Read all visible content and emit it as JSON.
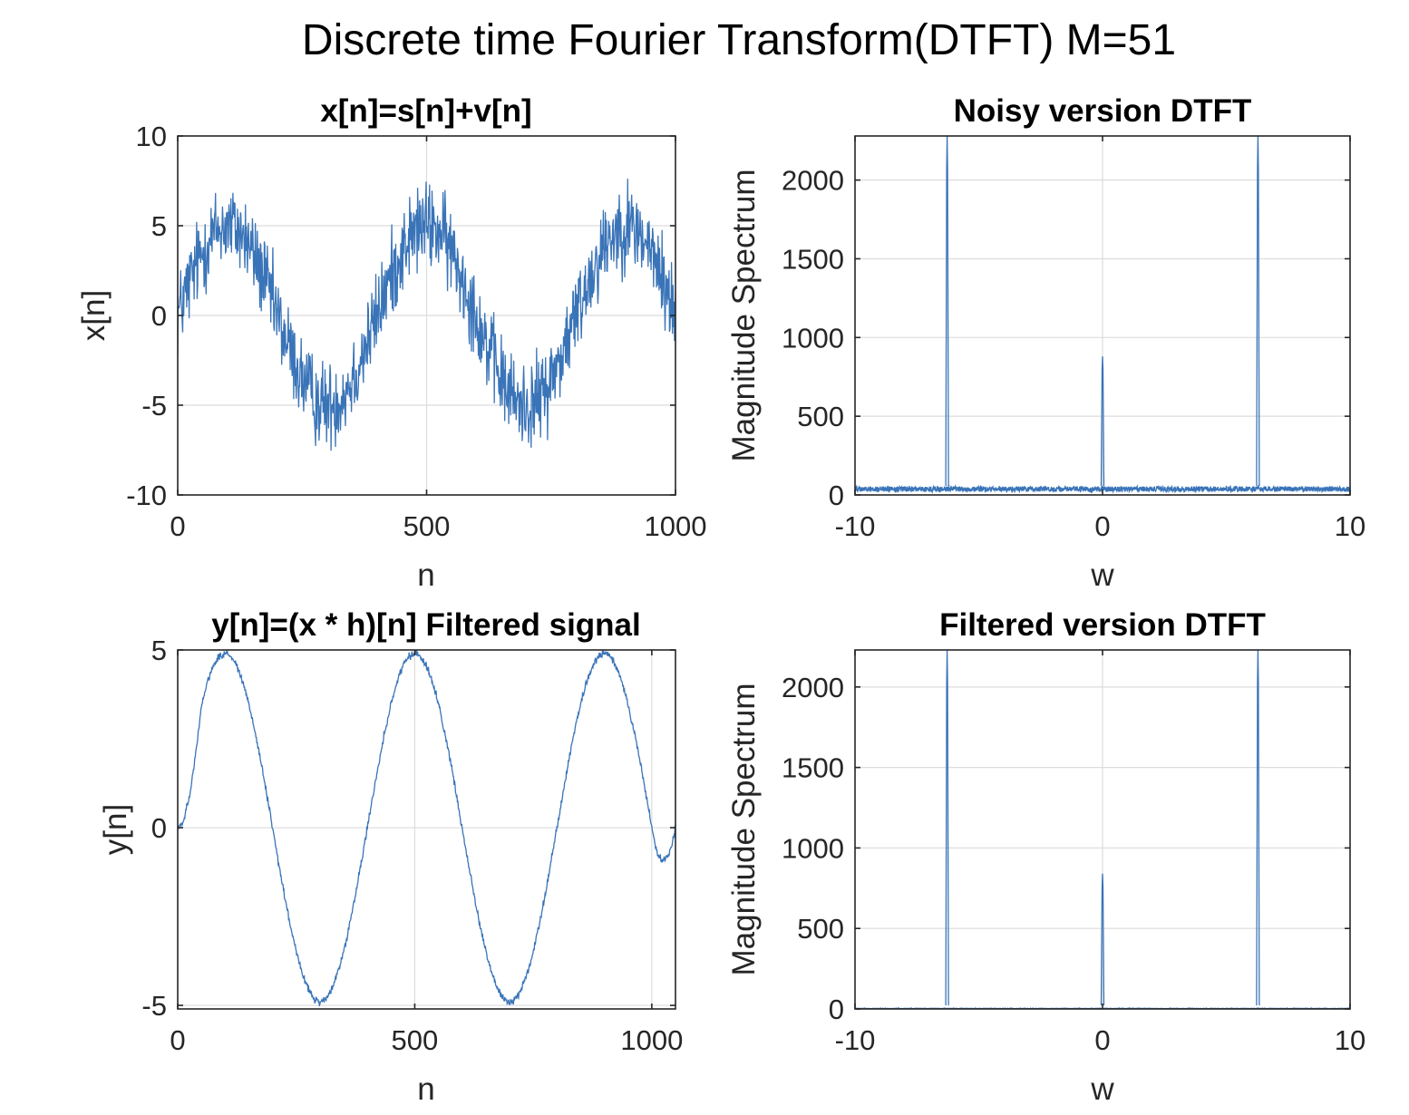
{
  "figure": {
    "title": "Discrete time Fourier Transform(DTFT) M=51",
    "line_color": "#3a74b8"
  },
  "chart_data": [
    {
      "id": "noisy-signal",
      "type": "line",
      "title": "x[n]=s[n]+v[n]",
      "xlabel": "n",
      "ylabel": "x[n]",
      "xlim": [
        0,
        1000
      ],
      "ylim": [
        -10,
        10
      ],
      "xticks": [
        0,
        500,
        1000
      ],
      "xtick_labels": [
        "0",
        "500",
        "1000"
      ],
      "yticks": [
        -10,
        -5,
        0,
        5,
        10
      ],
      "ytick_labels": [
        "-10",
        "-5",
        "0",
        "5",
        "10"
      ],
      "grid": true,
      "series": [
        {
          "color": "#3a74b8",
          "signal": {
            "kind": "noisy-sine",
            "amplitude": 5,
            "period": 400,
            "n_start": 0,
            "n_end": 1000,
            "noise_amplitude": 1.6
          }
        }
      ]
    },
    {
      "id": "noisy-dtft",
      "type": "line",
      "title": "Noisy version DTFT",
      "xlabel": "w",
      "ylabel": "Magnitude Spectrum",
      "xlim": [
        -10,
        10
      ],
      "ylim": [
        0,
        2280
      ],
      "xticks": [
        -10,
        0,
        10
      ],
      "xtick_labels": [
        "-10",
        "0",
        "10"
      ],
      "yticks": [
        0,
        500,
        1000,
        1500,
        2000
      ],
      "ytick_labels": [
        "0",
        "500",
        "1000",
        "1500",
        "2000"
      ],
      "grid": true,
      "series": [
        {
          "color": "#3a74b8",
          "spectrum": {
            "floor": [
              20,
              55
            ],
            "peaks": [
              {
                "w": -6.28,
                "magnitude": 2300
              },
              {
                "w": 0,
                "magnitude": 880
              },
              {
                "w": 6.28,
                "magnitude": 2300
              }
            ]
          }
        }
      ]
    },
    {
      "id": "filtered-signal",
      "type": "line",
      "title": "y[n]=(x * h)[n] Filtered signal",
      "xlabel": "n",
      "ylabel": "y[n]",
      "xlim": [
        0,
        1050
      ],
      "ylim": [
        -5.1,
        5
      ],
      "xticks": [
        0,
        500,
        1000
      ],
      "xtick_labels": [
        "0",
        "500",
        "1000"
      ],
      "yticks": [
        -5,
        0,
        5
      ],
      "ytick_labels": [
        "-5",
        "0",
        "5"
      ],
      "grid": true,
      "series": [
        {
          "color": "#3a74b8",
          "signal": {
            "kind": "filtered-sine",
            "amplitude": 4.9,
            "period": 400,
            "n_start": 0,
            "n_end": 1050,
            "ramp": 50,
            "noise_amplitude": 0.05
          }
        }
      ]
    },
    {
      "id": "filtered-dtft",
      "type": "line",
      "title": "Filtered version DTFT",
      "xlabel": "w",
      "ylabel": "Magnitude Spectrum",
      "xlim": [
        -10,
        10
      ],
      "ylim": [
        0,
        2230
      ],
      "xticks": [
        -10,
        0,
        10
      ],
      "xtick_labels": [
        "-10",
        "0",
        "10"
      ],
      "yticks": [
        0,
        500,
        1000,
        1500,
        2000
      ],
      "ytick_labels": [
        "0",
        "500",
        "1000",
        "1500",
        "2000"
      ],
      "grid": true,
      "series": [
        {
          "color": "#3a74b8",
          "spectrum": {
            "floor": [
              0,
              4
            ],
            "peaks": [
              {
                "w": -6.28,
                "magnitude": 2250
              },
              {
                "w": 0,
                "magnitude": 840
              },
              {
                "w": 6.28,
                "magnitude": 2250
              }
            ]
          }
        }
      ]
    }
  ]
}
